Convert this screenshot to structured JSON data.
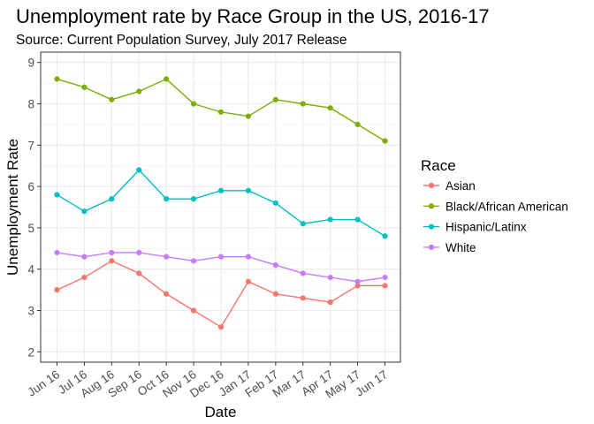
{
  "chart_data": {
    "type": "line",
    "title": "Unemployment rate by Race Group in the US, 2016-17",
    "subtitle": "Source: Current Population Survey, July 2017 Release",
    "xlabel": "Date",
    "ylabel": "Unemployment Rate",
    "categories": [
      "Jun 16",
      "Jul 16",
      "Aug 16",
      "Sep 16",
      "Oct 16",
      "Nov 16",
      "Dec 16",
      "Jan 17",
      "Feb 17",
      "Mar 17",
      "Apr 17",
      "May 17",
      "Jun 17"
    ],
    "ylim": [
      1.75,
      9.25
    ],
    "yticks": [
      2,
      3,
      4,
      5,
      6,
      7,
      8,
      9
    ],
    "grid": true,
    "legend": {
      "title": "Race",
      "position": "right"
    },
    "series": [
      {
        "name": "Asian",
        "color": "#F8766D",
        "values": [
          3.5,
          3.8,
          4.2,
          3.9,
          3.4,
          3.0,
          2.6,
          3.7,
          3.4,
          3.3,
          3.2,
          3.6,
          3.6
        ]
      },
      {
        "name": "Black/African American",
        "color": "#7CAE00",
        "values": [
          8.6,
          8.4,
          8.1,
          8.3,
          8.6,
          8.0,
          7.8,
          7.7,
          8.1,
          8.0,
          7.9,
          7.5,
          7.1
        ]
      },
      {
        "name": "Hispanic/Latinx",
        "color": "#00BFC4",
        "values": [
          5.8,
          5.4,
          5.7,
          6.4,
          5.7,
          5.7,
          5.9,
          5.9,
          5.6,
          5.1,
          5.2,
          5.2,
          4.8
        ]
      },
      {
        "name": "White",
        "color": "#C77CFF",
        "values": [
          4.4,
          4.3,
          4.4,
          4.4,
          4.3,
          4.2,
          4.3,
          4.3,
          4.1,
          3.9,
          3.8,
          3.7,
          3.8
        ]
      }
    ]
  }
}
